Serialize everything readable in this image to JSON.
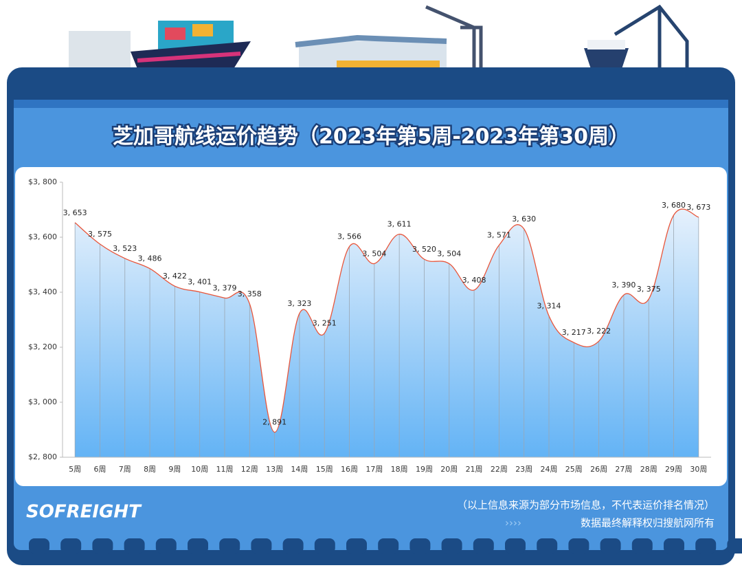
{
  "title": "芝加哥航线运价趋势（2023年第5周-2023年第30周）",
  "chart_data": {
    "type": "area",
    "categories": [
      "5周",
      "6周",
      "7周",
      "8周",
      "9周",
      "10周",
      "11周",
      "12周",
      "13周",
      "14周",
      "15周",
      "16周",
      "17周",
      "18周",
      "19周",
      "20周",
      "21周",
      "22周",
      "23周",
      "24周",
      "25周",
      "26周",
      "27周",
      "28周",
      "29周",
      "30周"
    ],
    "values": [
      3653,
      3575,
      3523,
      3486,
      3422,
      3401,
      3379,
      3358,
      2891,
      3323,
      3251,
      3566,
      3504,
      3611,
      3520,
      3504,
      3408,
      3571,
      3630,
      3314,
      3217,
      3222,
      3390,
      3375,
      3680,
      3673
    ],
    "value_labels": [
      "3, 653",
      "3, 575",
      "3, 523",
      "3, 486",
      "3, 422",
      "3, 401",
      "3, 379",
      "3, 358",
      "2, 891",
      "3, 323",
      "3, 251",
      "3, 566",
      "3, 504",
      "3, 611",
      "3, 520",
      "3, 504",
      "3, 408",
      "3, 571",
      "3, 630",
      "3, 314",
      "3, 217",
      "3, 222",
      "3, 390",
      "3, 375",
      "3, 680",
      "3, 673"
    ],
    "color": "#e8553a",
    "ylim": [
      2800,
      3800
    ],
    "yticks": [
      {
        "value": 2800,
        "label": "$2, 800"
      },
      {
        "value": 3000,
        "label": "$3, 000"
      },
      {
        "value": 3200,
        "label": "$3, 200"
      },
      {
        "value": 3400,
        "label": "$3, 400"
      },
      {
        "value": 3600,
        "label": "$3, 600"
      },
      {
        "value": 3800,
        "label": "$3, 800"
      }
    ]
  },
  "footer": {
    "logo": "SOFREIGHT",
    "note": "（以上信息来源为部分市场信息，不代表运价排名情况）",
    "rights": "数据最终解释权归搜航网所有"
  }
}
